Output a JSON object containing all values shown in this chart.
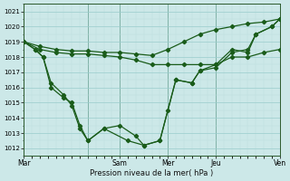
{
  "bg_color": "#cce8e8",
  "grid_major_color": "#99cccc",
  "grid_minor_color": "#bbdddd",
  "line_color": "#1a5c1a",
  "title": "Pression niveau de la mer( hPa )",
  "ylim": [
    1011.5,
    1021.5
  ],
  "yticks": [
    1012,
    1013,
    1014,
    1015,
    1016,
    1017,
    1018,
    1019,
    1020,
    1021
  ],
  "xlim": [
    0,
    16
  ],
  "vlines": [
    0,
    4,
    6,
    9,
    12,
    16
  ],
  "xtick_pos": [
    0,
    4,
    6,
    9,
    12,
    16
  ],
  "xtick_labels": [
    "Mar",
    "",
    "Sam",
    "Mer",
    "Jeu",
    "Ven"
  ],
  "line1_x": [
    0,
    1,
    2,
    3,
    4,
    5,
    6,
    7,
    8,
    9,
    10,
    11,
    12,
    13,
    14,
    15,
    16
  ],
  "line1_y": [
    1019.0,
    1018.7,
    1018.5,
    1018.4,
    1018.4,
    1018.3,
    1018.3,
    1018.2,
    1018.1,
    1018.5,
    1019.0,
    1019.5,
    1019.8,
    1020.0,
    1020.2,
    1020.3,
    1020.5
  ],
  "line2_x": [
    0,
    1,
    2,
    3,
    4,
    5,
    6,
    7,
    8,
    9,
    10,
    11,
    12,
    13,
    14,
    15,
    16
  ],
  "line2_y": [
    1019.0,
    1018.5,
    1018.3,
    1018.2,
    1018.2,
    1018.1,
    1018.0,
    1017.8,
    1017.5,
    1017.5,
    1017.5,
    1017.5,
    1017.5,
    1018.0,
    1018.0,
    1018.3,
    1018.5
  ],
  "line3_x": [
    0,
    0.7,
    1.2,
    1.7,
    2.5,
    3.0,
    3.5,
    4.0,
    5.0,
    6.0,
    7.0,
    7.5,
    8.5,
    9.0,
    9.5,
    10.5,
    11.0,
    12.0,
    13.0,
    14.0,
    14.5,
    15.5,
    16
  ],
  "line3_y": [
    1019.0,
    1018.5,
    1018.0,
    1016.3,
    1015.5,
    1014.8,
    1013.3,
    1012.5,
    1013.3,
    1013.5,
    1012.8,
    1012.2,
    1012.5,
    1014.5,
    1016.5,
    1016.3,
    1017.1,
    1017.5,
    1018.5,
    1018.3,
    1019.5,
    1020.0,
    1020.5
  ],
  "line4_x": [
    0,
    0.7,
    1.2,
    1.7,
    2.5,
    3.0,
    3.5,
    4.0,
    5.0,
    6.5,
    7.5,
    8.5,
    9.5,
    10.5,
    11.0,
    12.0,
    13.0,
    14.0,
    14.5,
    15.5,
    16
  ],
  "line4_y": [
    1019.0,
    1018.5,
    1018.0,
    1016.0,
    1015.3,
    1015.0,
    1013.5,
    1012.5,
    1013.3,
    1012.5,
    1012.2,
    1012.5,
    1016.5,
    1016.3,
    1017.1,
    1017.3,
    1018.3,
    1018.5,
    1019.5,
    1020.0,
    1020.5
  ]
}
